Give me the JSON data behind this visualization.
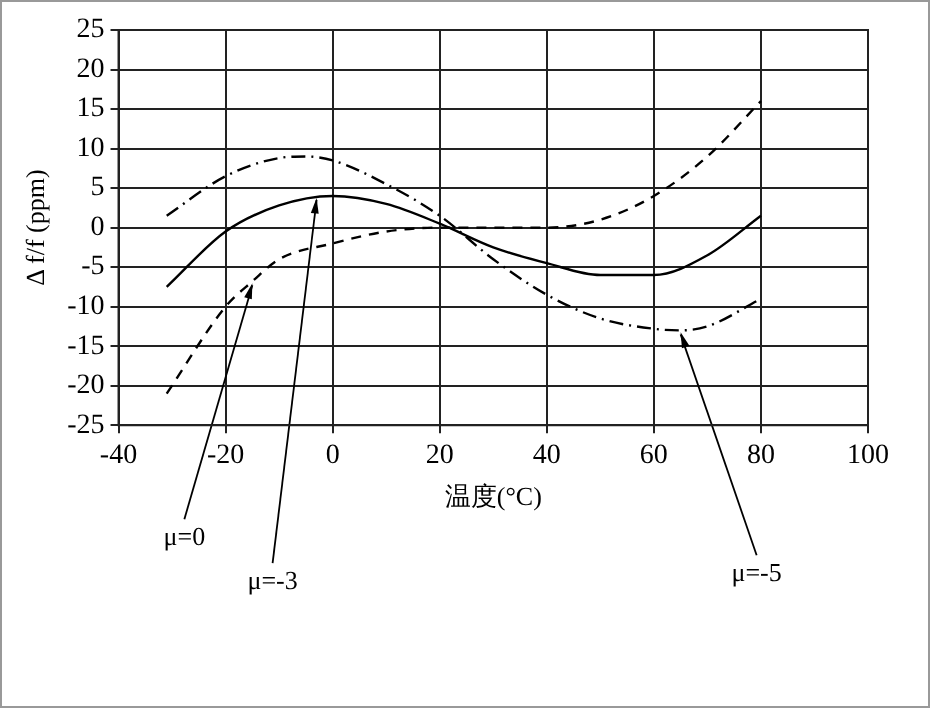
{
  "chart_data": {
    "type": "line",
    "xlabel": "温度(°C)",
    "ylabel": "Δ f/f (ppm)",
    "xlim": [
      -40,
      100
    ],
    "xticks": [
      -40,
      -20,
      0,
      20,
      40,
      60,
      80,
      100
    ],
    "ylim": [
      -25,
      25
    ],
    "yticks": [
      -25,
      -20,
      -15,
      -10,
      -5,
      0,
      5,
      10,
      15,
      20,
      25
    ],
    "grid": true,
    "legend": false,
    "marker": "none",
    "series": [
      {
        "color": "#000000",
        "line_style": "dashed",
        "x": [
          -31,
          -20,
          -15,
          -10,
          0,
          10,
          20,
          30,
          40,
          50,
          60,
          70,
          80
        ],
        "values": [
          -21,
          -10,
          -6.8,
          -4,
          -2,
          -0.5,
          0,
          0,
          0,
          1,
          4,
          9,
          16
        ]
      },
      {
        "color": "#000000",
        "line_style": "solid",
        "x": [
          -31,
          -20,
          -10,
          0,
          10,
          20,
          30,
          40,
          50,
          60,
          70,
          80
        ],
        "values": [
          -7.5,
          -0.5,
          2.8,
          4,
          3,
          0.5,
          -2.5,
          -4.5,
          -6,
          -6,
          -3.5,
          1.5
        ]
      },
      {
        "color": "#000000",
        "line_style": "dashdot",
        "x": [
          -31,
          -20,
          -10,
          -5,
          0,
          10,
          20,
          30,
          40,
          50,
          60,
          65,
          70,
          80
        ],
        "values": [
          1.5,
          6.5,
          8.8,
          9,
          8.5,
          5.5,
          1.5,
          -4,
          -8.5,
          -11.5,
          -12.8,
          -13,
          -12.5,
          -9
        ]
      }
    ],
    "annotations": [
      {
        "text": "μ=0",
        "x": -15,
        "y": -6.8
      },
      {
        "text": "μ=-3",
        "x": -3,
        "y": 4
      },
      {
        "text": "μ=-5",
        "x": 65,
        "y": -13
      }
    ]
  }
}
